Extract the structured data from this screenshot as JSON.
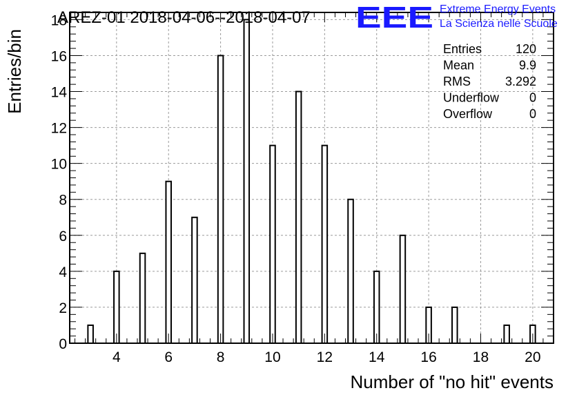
{
  "logo": {
    "mark": "EEE",
    "line1": "Extreme Energy Events",
    "line2": "La Scienza nelle Scuole",
    "color": "#1a1aff"
  },
  "stats_box": [
    {
      "label": "Entries",
      "value": "120"
    },
    {
      "label": "Mean",
      "value": "9.9"
    },
    {
      "label": "RMS",
      "value": "3.292"
    },
    {
      "label": "Underflow",
      "value": "0"
    },
    {
      "label": "Overflow",
      "value": "0"
    }
  ],
  "chart_data": {
    "type": "bar",
    "title": "AREZ-01 2018-04-06--2018-04-07",
    "xlabel": "Number of \"no hit\" events",
    "ylabel": "Entries/bin",
    "xlim": [
      2.2,
      20.8
    ],
    "ylim": [
      0,
      18.4
    ],
    "x_ticks": [
      4,
      6,
      8,
      10,
      12,
      14,
      16,
      18,
      20
    ],
    "y_ticks": [
      0,
      2,
      4,
      6,
      8,
      10,
      12,
      14,
      16,
      18
    ],
    "grid": true,
    "bar_width": 0.2,
    "bar_fill": "#ffffff",
    "bar_edge": "#000000",
    "categories": [
      3,
      4,
      5,
      6,
      7,
      8,
      9,
      10,
      11,
      12,
      13,
      14,
      15,
      16,
      17,
      18,
      19,
      20
    ],
    "values": [
      1,
      4,
      5,
      9,
      7,
      16,
      18,
      11,
      14,
      11,
      8,
      4,
      6,
      2,
      2,
      0,
      1,
      1
    ]
  }
}
